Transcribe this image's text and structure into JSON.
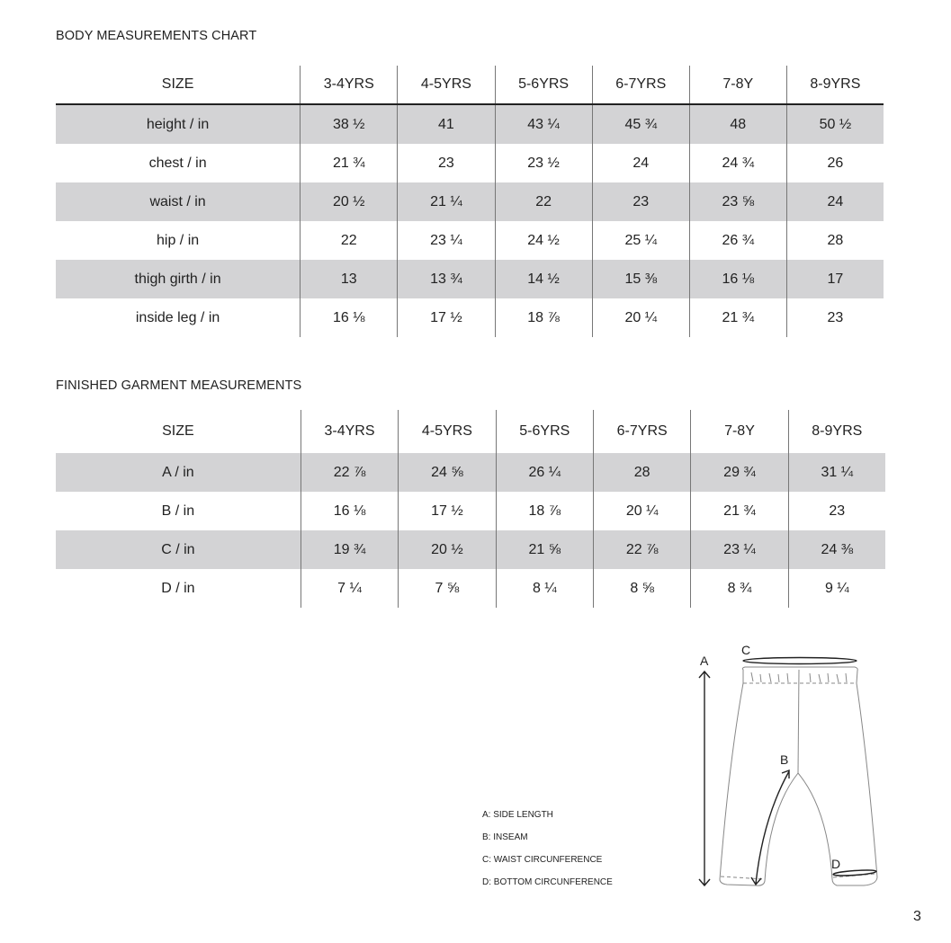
{
  "body_chart": {
    "title": "BODY MEASUREMENTS CHART",
    "header": [
      "SIZE",
      "3-4YRS",
      "4-5YRS",
      "5-6YRS",
      "6-7YRS",
      "7-8Y",
      "8-9YRS"
    ],
    "rows": [
      [
        "height / in",
        "38 ½",
        "41",
        "43 ¼",
        "45 ¾",
        "48",
        "50 ½"
      ],
      [
        "chest / in",
        "21 ¾",
        "23",
        "23 ½",
        "24",
        "24 ¾",
        "26"
      ],
      [
        "waist / in",
        "20 ½",
        "21 ¼",
        "22",
        "23",
        "23 ⅝",
        "24"
      ],
      [
        "hip / in",
        "22",
        "23 ¼",
        "24 ½",
        "25 ¼",
        "26 ¾",
        "28"
      ],
      [
        "thigh girth / in",
        "13",
        "13 ¾",
        "14 ½",
        "15 ⅜",
        "16 ⅛",
        "17"
      ],
      [
        "inside leg  / in",
        "16 ⅛",
        "17 ½",
        "18 ⅞",
        "20 ¼",
        "21 ¾",
        "23"
      ]
    ]
  },
  "garment_chart": {
    "title": "FINISHED GARMENT MEASUREMENTS",
    "header": [
      "SIZE",
      "3-4YRS",
      "4-5YRS",
      "5-6YRS",
      "6-7YRS",
      "7-8Y",
      "8-9YRS"
    ],
    "rows": [
      [
        "A / in",
        "22 ⅞",
        "24 ⅝",
        "26 ¼",
        "28",
        "29 ¾",
        "31 ¼"
      ],
      [
        "B / in",
        "16 ⅛",
        "17 ½",
        "18 ⅞",
        "20 ¼",
        "21 ¾",
        "23"
      ],
      [
        "C / in",
        "19 ¾",
        "20 ½",
        "21 ⅝",
        "22 ⅞",
        "23 ¼",
        "24 ⅜"
      ],
      [
        "D / in",
        "7 ¼",
        "7 ⅝",
        "8 ¼",
        "8 ⅝",
        "8 ¾",
        "9 ¼"
      ]
    ]
  },
  "diagram": {
    "labels": {
      "a": "A",
      "b": "B",
      "c": "C",
      "d": "D"
    },
    "legend": [
      "A: SIDE LENGTH",
      "B: INSEAM",
      "C: WAIST CIRCUNFERENCE",
      "D: BOTTOM CIRCUNFERENCE"
    ]
  },
  "page_number": "3",
  "colors": {
    "row_shade": "#d3d3d5",
    "text": "#222222"
  }
}
